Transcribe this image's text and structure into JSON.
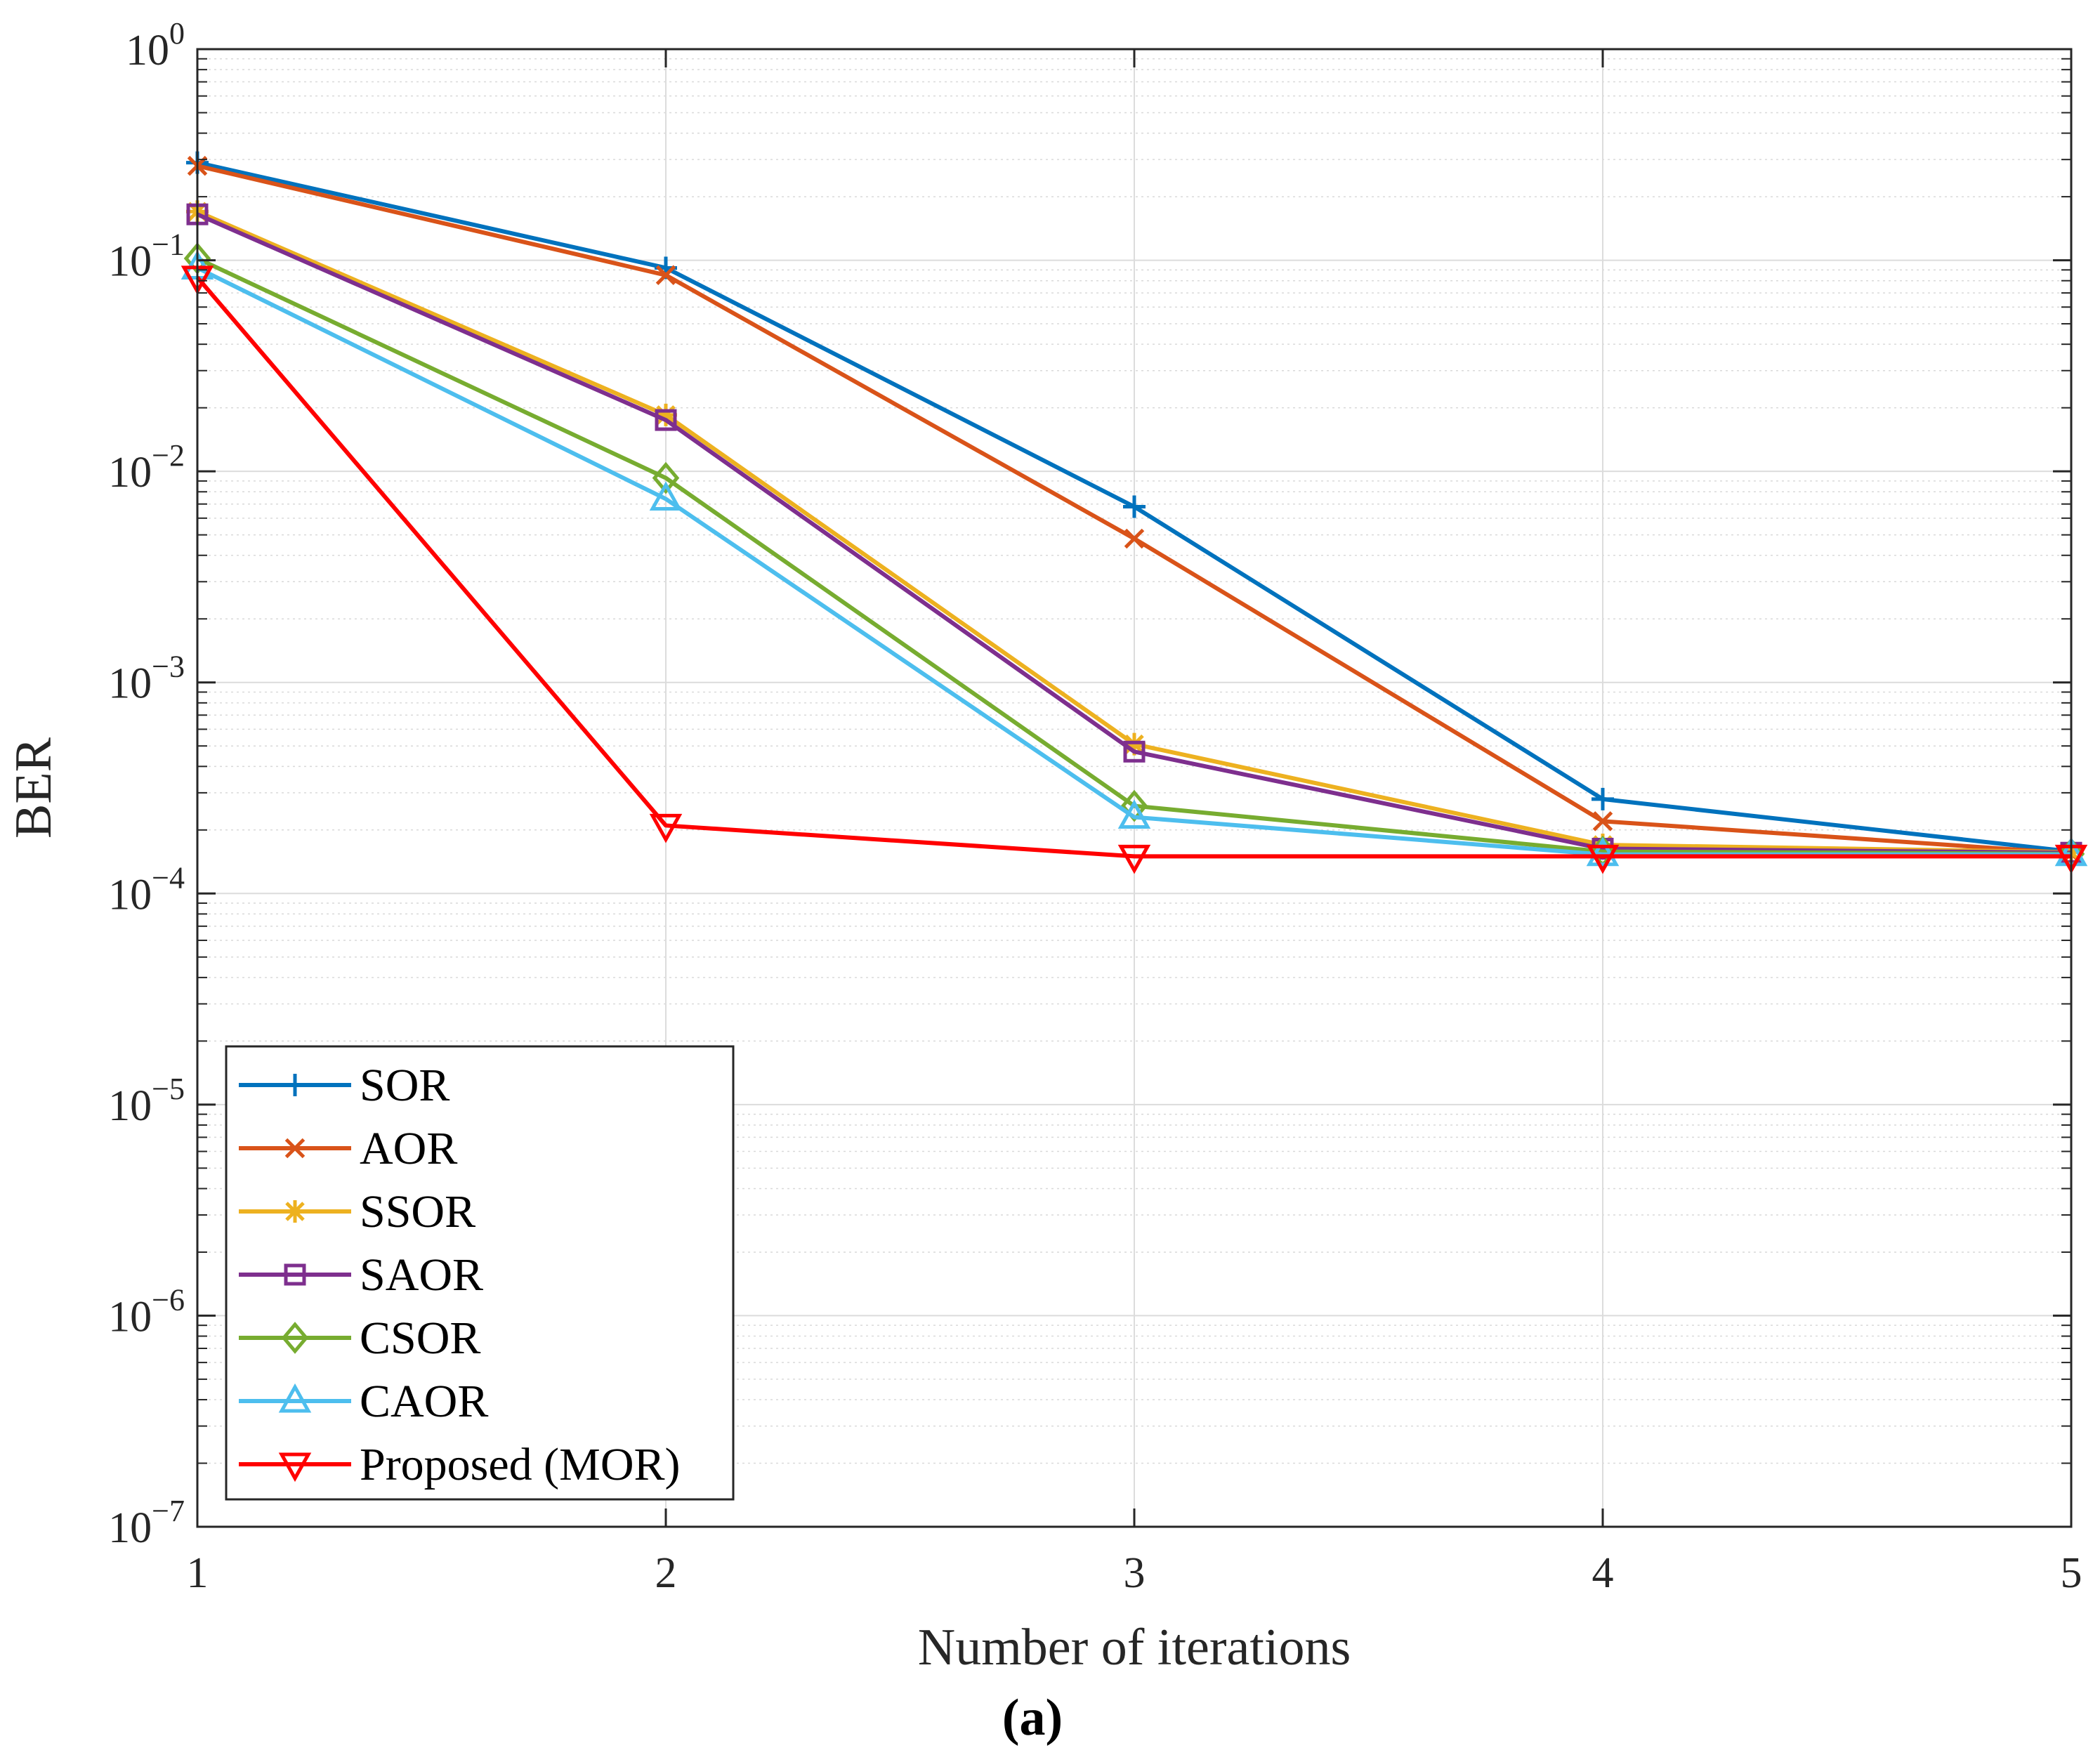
{
  "chart_data": {
    "type": "line",
    "title": "",
    "caption": "(a)",
    "xlabel": "Number of iterations",
    "ylabel": "BER",
    "x": [
      1,
      2,
      3,
      4,
      5
    ],
    "xticks": [
      "1",
      "2",
      "3",
      "4",
      "5"
    ],
    "yscale": "log",
    "ylim": [
      1e-07,
      1
    ],
    "yticks": [
      {
        "base": "10",
        "exp": "0",
        "value": 1
      },
      {
        "base": "10",
        "exp": "−1",
        "value": 0.1
      },
      {
        "base": "10",
        "exp": "−2",
        "value": 0.01
      },
      {
        "base": "10",
        "exp": "−3",
        "value": 0.001
      },
      {
        "base": "10",
        "exp": "−4",
        "value": 0.0001
      },
      {
        "base": "10",
        "exp": "−5",
        "value": 1e-05
      },
      {
        "base": "10",
        "exp": "−6",
        "value": 1e-06
      },
      {
        "base": "10",
        "exp": "−7",
        "value": 1e-07
      }
    ],
    "grid": true,
    "legend_position": "bottom-left",
    "series": [
      {
        "name": "SOR",
        "color": "#0072BD",
        "marker": "plus",
        "values": [
          0.29,
          0.092,
          0.0068,
          0.00028,
          0.000158
        ]
      },
      {
        "name": "AOR",
        "color": "#D95319",
        "marker": "x",
        "values": [
          0.28,
          0.085,
          0.0048,
          0.00022,
          0.000155
        ]
      },
      {
        "name": "SSOR",
        "color": "#EDB120",
        "marker": "asterisk",
        "values": [
          0.17,
          0.0185,
          0.00051,
          0.00017,
          0.000157
        ]
      },
      {
        "name": "SAOR",
        "color": "#7E2F8E",
        "marker": "square",
        "values": [
          0.165,
          0.0175,
          0.00047,
          0.000163,
          0.000156
        ]
      },
      {
        "name": "CSOR",
        "color": "#77AC30",
        "marker": "diamond",
        "values": [
          0.102,
          0.0093,
          0.00026,
          0.000158,
          0.000154
        ]
      },
      {
        "name": "CAOR",
        "color": "#4DBEEE",
        "marker": "triangle-up",
        "values": [
          0.092,
          0.0074,
          0.00023,
          0.000153,
          0.000153
        ]
      },
      {
        "name": "Proposed (MOR)",
        "color": "#FF0000",
        "marker": "triangle-down",
        "values": [
          0.083,
          0.00021,
          0.00015,
          0.00015,
          0.00015
        ]
      }
    ]
  }
}
